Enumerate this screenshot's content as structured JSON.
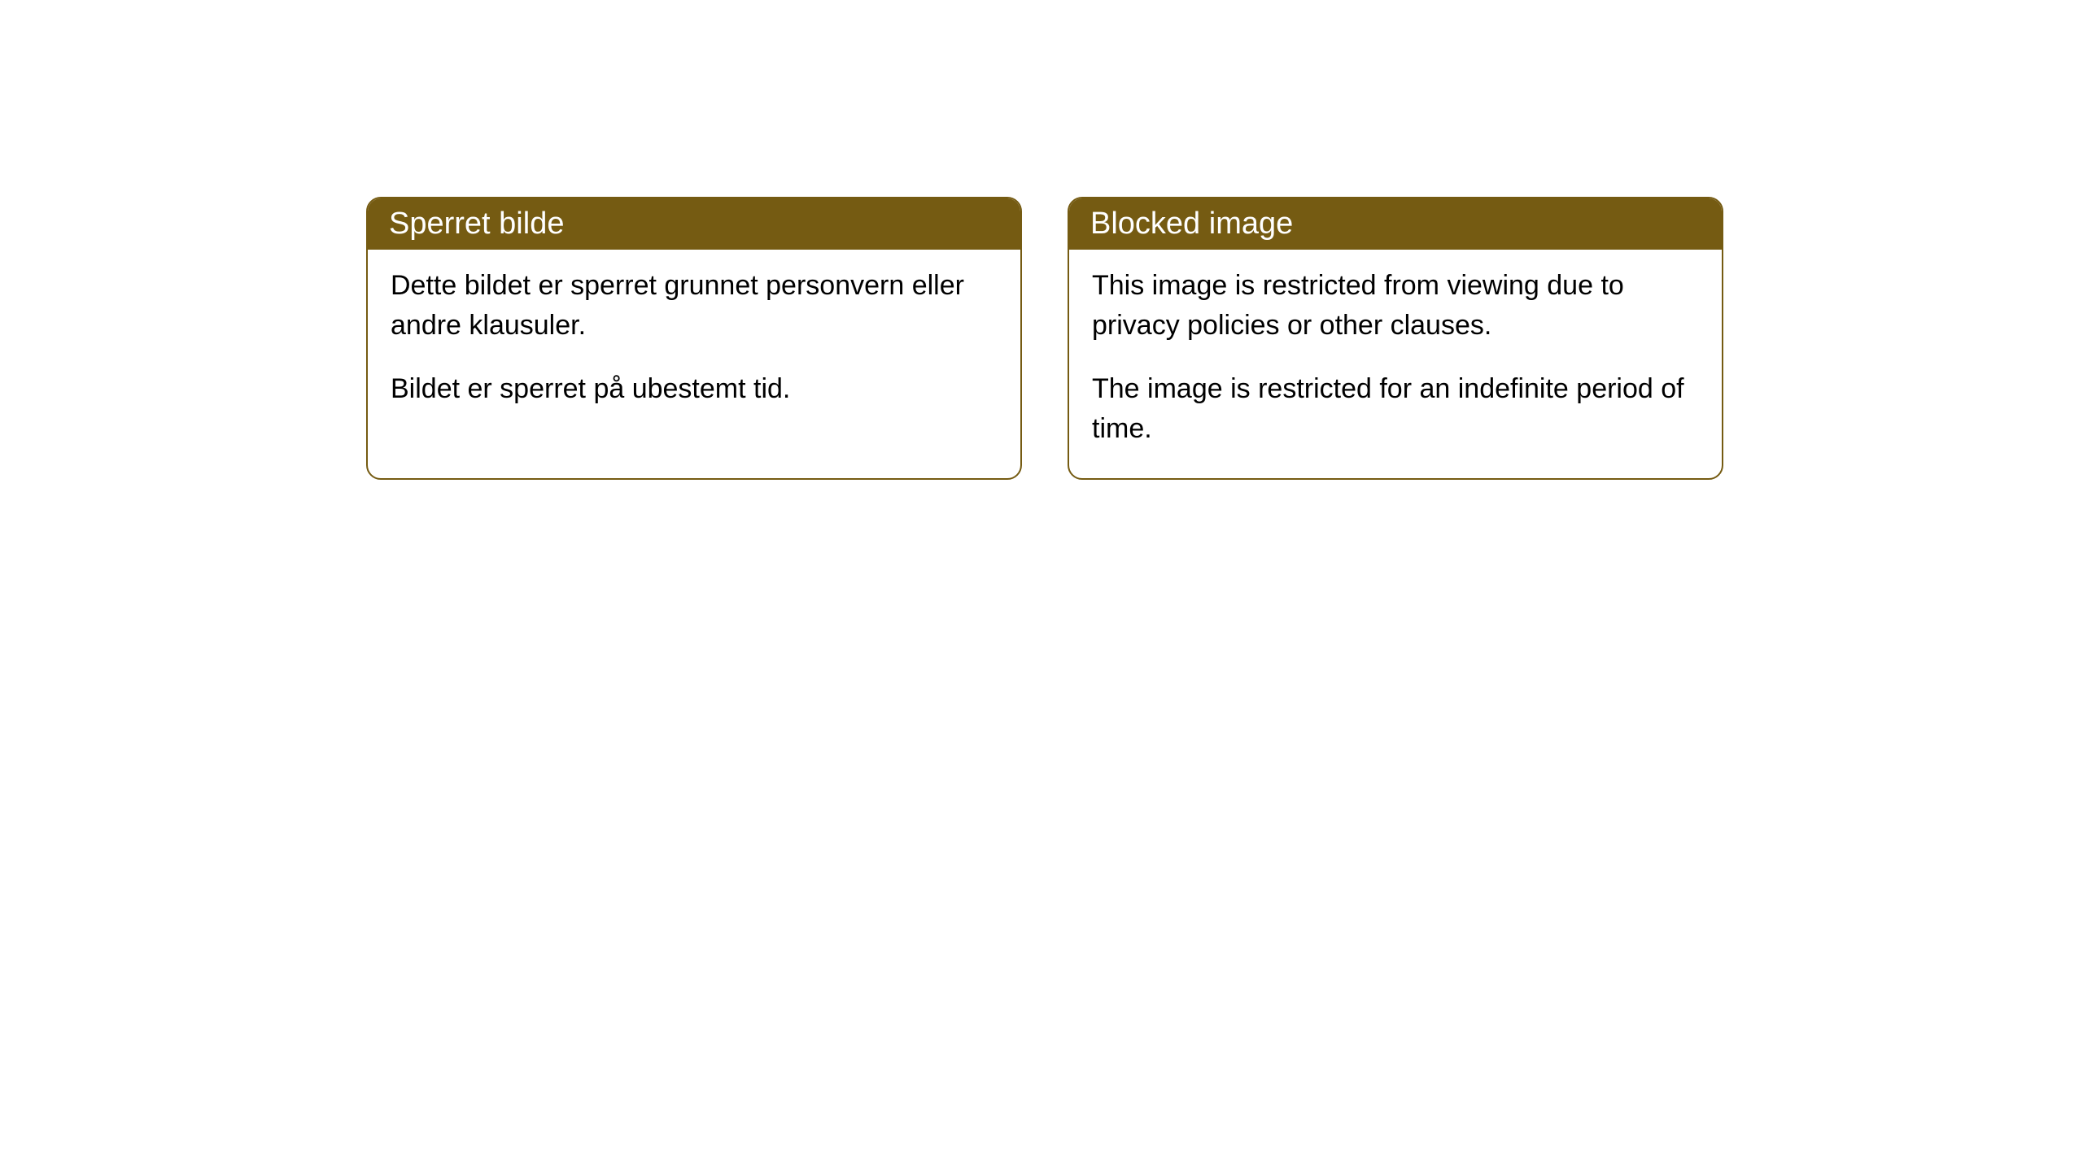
{
  "cards": [
    {
      "title": "Sperret bilde",
      "paragraph1": "Dette bildet er sperret grunnet personvern eller andre klausuler.",
      "paragraph2": "Bildet er sperret på ubestemt tid."
    },
    {
      "title": "Blocked image",
      "paragraph1": "This image is restricted from viewing due to privacy policies or other clauses.",
      "paragraph2": "The image is restricted for an indefinite period of time."
    }
  ],
  "style": {
    "header_background": "#755b12",
    "header_text_color": "#ffffff",
    "border_color": "#755b12",
    "body_background": "#ffffff",
    "body_text_color": "#000000",
    "border_radius": 18,
    "title_fontsize": 38,
    "body_fontsize": 34
  }
}
